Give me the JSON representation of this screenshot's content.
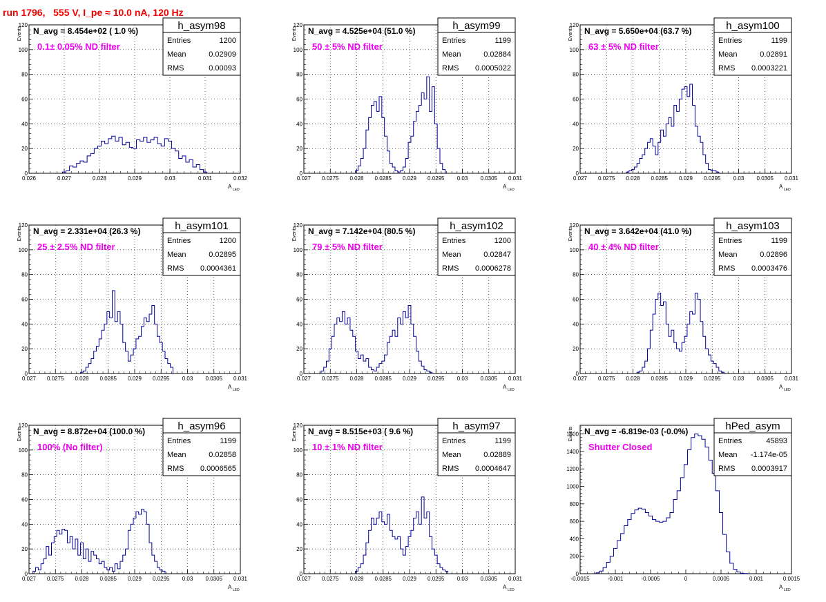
{
  "page_title": "run 1796,   555 V, I_pe ≈ 10.0 nA, 120 Hz",
  "colors": {
    "hist_line": "#000099",
    "annotation": "#ee00ee",
    "title": "#ee0000",
    "axis": "#000000",
    "grid": "#000000"
  },
  "common": {
    "ylabel": "Events",
    "xlabel": "A",
    "xlabel_sub": "LED",
    "stat_labels": [
      "Entries",
      "Mean",
      "RMS"
    ]
  },
  "chart_data": [
    {
      "type": "histogram",
      "name": "h_asym98",
      "navg": "N_avg = 8.454e+02 ( 1.0 %)",
      "filter": "0.1± 0.05% ND filter",
      "stats": {
        "entries": "1200",
        "mean": "0.02909",
        "rms": "0.00093"
      },
      "xlim": [
        0.026,
        0.032
      ],
      "ylim": [
        0,
        120
      ],
      "grid": true,
      "xticks": [
        "0.026",
        "0.027",
        "0.028",
        "0.029",
        "0.03",
        "0.031",
        "0.032"
      ],
      "yticks": [
        "0",
        "20",
        "40",
        "60",
        "80",
        "100",
        "120"
      ],
      "x": [
        0.027,
        0.0271,
        0.0272,
        0.0273,
        0.0274,
        0.0275,
        0.0276,
        0.0277,
        0.0278,
        0.0279,
        0.028,
        0.0281,
        0.0282,
        0.0283,
        0.0284,
        0.0285,
        0.0286,
        0.0287,
        0.0288,
        0.0289,
        0.029,
        0.0291,
        0.0292,
        0.0293,
        0.0294,
        0.0295,
        0.0296,
        0.0297,
        0.0298,
        0.0299,
        0.03,
        0.0301,
        0.0302,
        0.0303,
        0.0304,
        0.0305,
        0.0306,
        0.0307,
        0.0308,
        0.0309,
        0.031
      ],
      "values": [
        1,
        2,
        6,
        5,
        8,
        10,
        9,
        14,
        16,
        20,
        22,
        26,
        24,
        28,
        30,
        26,
        29,
        23,
        25,
        21,
        20,
        27,
        26,
        29,
        25,
        27,
        29,
        24,
        22,
        28,
        26,
        20,
        18,
        12,
        14,
        9,
        11,
        5,
        7,
        3,
        1
      ]
    },
    {
      "type": "histogram",
      "name": "h_asym99",
      "navg": "N_avg = 4.525e+04 (51.0 %)",
      "filter": "50 ± 5% ND filter",
      "stats": {
        "entries": "1199",
        "mean": "0.02884",
        "rms": "0.0005022"
      },
      "xlim": [
        0.027,
        0.031
      ],
      "ylim": [
        0,
        120
      ],
      "grid": true,
      "xticks": [
        "0.027",
        "0.0275",
        "0.028",
        "0.0285",
        "0.029",
        "0.0295",
        "0.03",
        "0.0305",
        "0.031"
      ],
      "yticks": [
        "0",
        "20",
        "40",
        "60",
        "80",
        "100",
        "120"
      ],
      "x": [
        0.028,
        0.02805,
        0.0281,
        0.02815,
        0.0282,
        0.02825,
        0.0283,
        0.02835,
        0.0284,
        0.02845,
        0.0285,
        0.02855,
        0.0286,
        0.02865,
        0.0287,
        0.02875,
        0.0288,
        0.02885,
        0.0289,
        0.02895,
        0.029,
        0.02905,
        0.0291,
        0.02915,
        0.0292,
        0.02925,
        0.0293,
        0.02935,
        0.0294,
        0.02945,
        0.0295,
        0.02955,
        0.0296,
        0.02965
      ],
      "values": [
        2,
        6,
        12,
        20,
        35,
        45,
        55,
        58,
        50,
        62,
        45,
        30,
        18,
        8,
        5,
        2,
        1,
        2,
        5,
        12,
        25,
        30,
        42,
        50,
        55,
        65,
        60,
        78,
        50,
        70,
        40,
        20,
        8,
        3
      ]
    },
    {
      "type": "histogram",
      "name": "h_asym100",
      "navg": "N_avg = 5.650e+04 (63.7 %)",
      "filter": "63 ± 5% ND filter",
      "stats": {
        "entries": "1199",
        "mean": "0.02891",
        "rms": "0.0003221"
      },
      "xlim": [
        0.027,
        0.031
      ],
      "ylim": [
        0,
        120
      ],
      "grid": true,
      "xticks": [
        "0.027",
        "0.0275",
        "0.028",
        "0.0285",
        "0.029",
        "0.0295",
        "0.03",
        "0.0305",
        "0.031"
      ],
      "yticks": [
        "0",
        "20",
        "40",
        "60",
        "80",
        "100",
        "120"
      ],
      "x": [
        0.0279,
        0.02795,
        0.028,
        0.02805,
        0.0281,
        0.02815,
        0.0282,
        0.02825,
        0.0283,
        0.02835,
        0.0284,
        0.02845,
        0.0285,
        0.02855,
        0.0286,
        0.02865,
        0.0287,
        0.02875,
        0.0288,
        0.02885,
        0.0289,
        0.02895,
        0.029,
        0.02905,
        0.0291,
        0.02915,
        0.0292,
        0.02925,
        0.0293,
        0.02935,
        0.0294,
        0.02945,
        0.0295,
        0.02955,
        0.0296
      ],
      "values": [
        1,
        2,
        3,
        5,
        8,
        12,
        15,
        20,
        25,
        28,
        22,
        15,
        25,
        35,
        30,
        40,
        45,
        38,
        55,
        50,
        60,
        68,
        70,
        62,
        72,
        55,
        38,
        30,
        25,
        15,
        8,
        3,
        2,
        2,
        1
      ]
    },
    {
      "type": "histogram",
      "name": "h_asym101",
      "navg": "N_avg = 2.331e+04 (26.3 %)",
      "filter": "25 ± 2.5% ND filter",
      "stats": {
        "entries": "1200",
        "mean": "0.02895",
        "rms": "0.0004361"
      },
      "xlim": [
        0.027,
        0.031
      ],
      "ylim": [
        0,
        120
      ],
      "grid": true,
      "xticks": [
        "0.027",
        "0.0275",
        "0.028",
        "0.0285",
        "0.029",
        "0.0295",
        "0.03",
        "0.0305",
        "0.031"
      ],
      "yticks": [
        "0",
        "20",
        "40",
        "60",
        "80",
        "100",
        "120"
      ],
      "x": [
        0.028,
        0.02805,
        0.0281,
        0.02815,
        0.0282,
        0.02825,
        0.0283,
        0.02835,
        0.0284,
        0.02845,
        0.0285,
        0.02855,
        0.0286,
        0.02865,
        0.0287,
        0.02875,
        0.0288,
        0.02885,
        0.0289,
        0.02895,
        0.029,
        0.02905,
        0.0291,
        0.02915,
        0.0292,
        0.02925,
        0.0293,
        0.02935,
        0.0294,
        0.02945,
        0.0295,
        0.02955,
        0.0296,
        0.02965,
        0.0297
      ],
      "values": [
        1,
        2,
        5,
        8,
        12,
        18,
        22,
        28,
        35,
        40,
        50,
        45,
        67,
        42,
        50,
        40,
        25,
        18,
        10,
        15,
        20,
        28,
        30,
        38,
        45,
        42,
        48,
        55,
        40,
        30,
        25,
        18,
        12,
        8,
        5
      ]
    },
    {
      "type": "histogram",
      "name": "h_asym102",
      "navg": "N_avg = 7.142e+04 (80.5 %)",
      "filter": "79 ± 5% ND filter",
      "stats": {
        "entries": "1200",
        "mean": "0.02847",
        "rms": "0.0006278"
      },
      "xlim": [
        0.027,
        0.031
      ],
      "ylim": [
        0,
        120
      ],
      "grid": true,
      "xticks": [
        "0.027",
        "0.0275",
        "0.028",
        "0.0285",
        "0.029",
        "0.0295",
        "0.03",
        "0.0305",
        "0.031"
      ],
      "yticks": [
        "0",
        "20",
        "40",
        "60",
        "80",
        "100",
        "120"
      ],
      "x": [
        0.02735,
        0.0274,
        0.02745,
        0.0275,
        0.02755,
        0.0276,
        0.02765,
        0.0277,
        0.02775,
        0.0278,
        0.02785,
        0.0279,
        0.02795,
        0.028,
        0.02805,
        0.0281,
        0.02815,
        0.0282,
        0.02825,
        0.0283,
        0.02835,
        0.0284,
        0.02845,
        0.0285,
        0.02855,
        0.0286,
        0.02865,
        0.0287,
        0.02875,
        0.0288,
        0.02885,
        0.0289,
        0.02895,
        0.029,
        0.02905,
        0.0291,
        0.02915,
        0.0292,
        0.02925,
        0.0293,
        0.02935,
        0.0294
      ],
      "values": [
        2,
        5,
        10,
        20,
        30,
        40,
        45,
        42,
        50,
        40,
        45,
        35,
        30,
        18,
        12,
        15,
        10,
        12,
        5,
        3,
        2,
        5,
        8,
        10,
        15,
        25,
        30,
        35,
        30,
        45,
        40,
        50,
        45,
        55,
        40,
        30,
        18,
        10,
        6,
        3,
        2,
        1
      ]
    },
    {
      "type": "histogram",
      "name": "h_asym103",
      "navg": "N_avg = 3.642e+04 (41.0 %)",
      "filter": "40 ± 4% ND filter",
      "stats": {
        "entries": "1199",
        "mean": "0.02896",
        "rms": "0.0003476"
      },
      "xlim": [
        0.027,
        0.031
      ],
      "ylim": [
        0,
        120
      ],
      "grid": true,
      "xticks": [
        "0.027",
        "0.0275",
        "0.028",
        "0.0285",
        "0.029",
        "0.0295",
        "0.03",
        "0.0305",
        "0.031"
      ],
      "yticks": [
        "0",
        "20",
        "40",
        "60",
        "80",
        "100",
        "120"
      ],
      "x": [
        0.0281,
        0.02815,
        0.0282,
        0.02825,
        0.0283,
        0.02835,
        0.0284,
        0.02845,
        0.0285,
        0.02855,
        0.0286,
        0.02865,
        0.0287,
        0.02875,
        0.0288,
        0.02885,
        0.0289,
        0.02895,
        0.029,
        0.02905,
        0.0291,
        0.02915,
        0.0292,
        0.02925,
        0.0293,
        0.02935,
        0.0294,
        0.02945,
        0.0295,
        0.02955,
        0.0296,
        0.02965,
        0.0297
      ],
      "values": [
        1,
        2,
        5,
        10,
        20,
        35,
        48,
        60,
        65,
        55,
        58,
        40,
        30,
        35,
        25,
        20,
        18,
        25,
        30,
        40,
        50,
        48,
        65,
        60,
        42,
        30,
        20,
        15,
        10,
        8,
        5,
        2,
        1
      ]
    },
    {
      "type": "histogram",
      "name": "h_asym96",
      "navg": "N_avg = 8.872e+04 (100.0 %)",
      "filter": "100% (No filter)",
      "stats": {
        "entries": "1199",
        "mean": "0.02858",
        "rms": "0.0006565"
      },
      "xlim": [
        0.027,
        0.031
      ],
      "ylim": [
        0,
        120
      ],
      "grid": true,
      "xticks": [
        "0.027",
        "0.0275",
        "0.028",
        "0.0285",
        "0.029",
        "0.0295",
        "0.03",
        "0.0305",
        "0.031"
      ],
      "yticks": [
        "0",
        "20",
        "40",
        "60",
        "80",
        "100",
        "120"
      ],
      "x": [
        0.0271,
        0.02715,
        0.0272,
        0.02725,
        0.0273,
        0.02735,
        0.0274,
        0.02745,
        0.0275,
        0.02755,
        0.0276,
        0.02765,
        0.0277,
        0.02775,
        0.0278,
        0.02785,
        0.0279,
        0.02795,
        0.028,
        0.02805,
        0.0281,
        0.02815,
        0.0282,
        0.02825,
        0.0283,
        0.02835,
        0.0284,
        0.02845,
        0.0285,
        0.02855,
        0.0286,
        0.02865,
        0.0287,
        0.02875,
        0.0288,
        0.02885,
        0.0289,
        0.02895,
        0.029,
        0.02905,
        0.0291,
        0.02915,
        0.0292,
        0.02925,
        0.0293,
        0.02935,
        0.0294,
        0.02945,
        0.0295,
        0.02955
      ],
      "values": [
        2,
        5,
        3,
        8,
        12,
        22,
        15,
        25,
        30,
        35,
        32,
        36,
        35,
        25,
        30,
        20,
        28,
        15,
        25,
        12,
        20,
        10,
        18,
        15,
        12,
        8,
        10,
        5,
        3,
        5,
        2,
        8,
        4,
        10,
        15,
        20,
        35,
        40,
        45,
        50,
        48,
        52,
        50,
        40,
        25,
        15,
        10,
        5,
        3,
        2
      ]
    },
    {
      "type": "histogram",
      "name": "h_asym97",
      "navg": "N_avg = 8.515e+03 ( 9.6 %)",
      "filter": "10 ± 1% ND filter",
      "stats": {
        "entries": "1199",
        "mean": "0.02889",
        "rms": "0.0004647"
      },
      "xlim": [
        0.027,
        0.031
      ],
      "ylim": [
        0,
        120
      ],
      "grid": true,
      "xticks": [
        "0.027",
        "0.0275",
        "0.028",
        "0.0285",
        "0.029",
        "0.0295",
        "0.03",
        "0.0305",
        "0.031"
      ],
      "yticks": [
        "0",
        "20",
        "40",
        "60",
        "80",
        "100",
        "120"
      ],
      "x": [
        0.028,
        0.02805,
        0.0281,
        0.02815,
        0.0282,
        0.02825,
        0.0283,
        0.02835,
        0.0284,
        0.02845,
        0.0285,
        0.02855,
        0.0286,
        0.02865,
        0.0287,
        0.02875,
        0.0288,
        0.02885,
        0.0289,
        0.02895,
        0.029,
        0.02905,
        0.0291,
        0.02915,
        0.0292,
        0.02925,
        0.0293,
        0.02935,
        0.0294,
        0.02945,
        0.0295,
        0.02955,
        0.0296,
        0.02965,
        0.0297
      ],
      "values": [
        2,
        5,
        8,
        15,
        25,
        35,
        45,
        40,
        45,
        50,
        42,
        40,
        48,
        35,
        30,
        28,
        30,
        20,
        15,
        22,
        30,
        35,
        45,
        50,
        40,
        62,
        45,
        50,
        30,
        20,
        15,
        8,
        5,
        3,
        2
      ]
    },
    {
      "type": "histogram",
      "name": "hPed_asym",
      "navg": "N_avg = -6.819e-03 (-0.0%)",
      "filter": "Shutter Closed",
      "stats": {
        "entries": "45893",
        "mean": "-1.174e-05",
        "rms": "0.0003917"
      },
      "xlim": [
        -0.0015,
        0.0015
      ],
      "ylim": [
        0,
        1700
      ],
      "grid": false,
      "xticks": [
        "-0.0015",
        "-0.001",
        "-0.0005",
        "0",
        "0.0005",
        "0.001",
        "0.0015"
      ],
      "yticks": [
        "0",
        "200",
        "400",
        "600",
        "800",
        "1000",
        "1200",
        "1400",
        "1600"
      ],
      "x": [
        -0.00125,
        -0.0012,
        -0.00115,
        -0.0011,
        -0.00105,
        -0.001,
        -0.00095,
        -0.0009,
        -0.00085,
        -0.0008,
        -0.00075,
        -0.0007,
        -0.00065,
        -0.0006,
        -0.00055,
        -0.0005,
        -0.00045,
        -0.0004,
        -0.00035,
        -0.0003,
        -0.00025,
        -0.0002,
        -0.00015,
        -0.0001,
        -5e-05,
        0.0,
        5e-05,
        0.0001,
        0.00015,
        0.0002,
        0.00025,
        0.0003,
        0.00035,
        0.0004,
        0.00045,
        0.0005,
        0.00055,
        0.0006,
        0.00065,
        0.0007,
        0.00075,
        0.0008,
        0.00085
      ],
      "values": [
        10,
        30,
        70,
        130,
        200,
        290,
        380,
        460,
        550,
        620,
        690,
        730,
        750,
        740,
        700,
        660,
        620,
        600,
        590,
        600,
        640,
        700,
        850,
        950,
        1100,
        1250,
        1420,
        1560,
        1600,
        1580,
        1540,
        1450,
        1300,
        1150,
        950,
        700,
        450,
        250,
        120,
        50,
        20,
        5,
        2
      ]
    }
  ]
}
